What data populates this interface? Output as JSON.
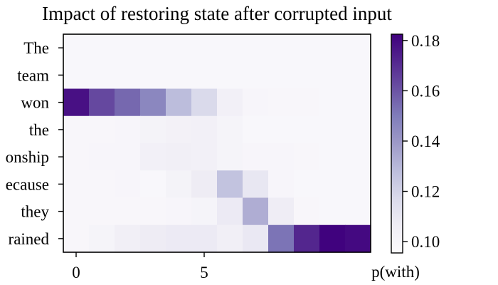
{
  "chart_data": {
    "type": "heatmap",
    "title": "Impact of restoring state after corrupted input",
    "xlabel": "",
    "ylabel": "",
    "y_categories": [
      "The",
      "team",
      "won",
      "the",
      "onship",
      "ecause",
      "they",
      "rained"
    ],
    "x_ticks": [
      {
        "value": 0,
        "label": "0"
      },
      {
        "value": 5,
        "label": "5"
      }
    ],
    "x_extra_label": "p(with)",
    "n_columns": 12,
    "values": [
      [
        0.0985,
        0.0985,
        0.0985,
        0.0985,
        0.0985,
        0.0985,
        0.0985,
        0.0985,
        0.0985,
        0.0985,
        0.0985,
        0.0985
      ],
      [
        0.0985,
        0.0985,
        0.0985,
        0.0985,
        0.0985,
        0.0985,
        0.0985,
        0.0985,
        0.0985,
        0.0985,
        0.0985,
        0.0985
      ],
      [
        0.178,
        0.163,
        0.155,
        0.146,
        0.128,
        0.117,
        0.104,
        0.1,
        0.099,
        0.099,
        0.0985,
        0.0985
      ],
      [
        0.099,
        0.099,
        0.1,
        0.102,
        0.103,
        0.104,
        0.101,
        0.0985,
        0.0985,
        0.0985,
        0.0985,
        0.0985
      ],
      [
        0.099,
        0.1,
        0.1,
        0.104,
        0.105,
        0.104,
        0.101,
        0.1,
        0.1,
        0.099,
        0.0985,
        0.0985
      ],
      [
        0.099,
        0.099,
        0.1,
        0.0985,
        0.102,
        0.107,
        0.126,
        0.11,
        0.1,
        0.0985,
        0.0985,
        0.0985
      ],
      [
        0.099,
        0.099,
        0.099,
        0.099,
        0.1,
        0.101,
        0.108,
        0.133,
        0.106,
        0.099,
        0.0985,
        0.0985
      ],
      [
        0.099,
        0.101,
        0.105,
        0.107,
        0.108,
        0.108,
        0.105,
        0.109,
        0.152,
        0.172,
        0.182,
        0.18
      ]
    ],
    "colorbar": {
      "min": 0.0955,
      "max": 0.1825,
      "ticks": [
        "0.10",
        "0.12",
        "0.14",
        "0.16",
        "0.18"
      ],
      "colormap": "Purples",
      "low_color": "#fcfbfd",
      "high_color": "#3f007d"
    }
  }
}
